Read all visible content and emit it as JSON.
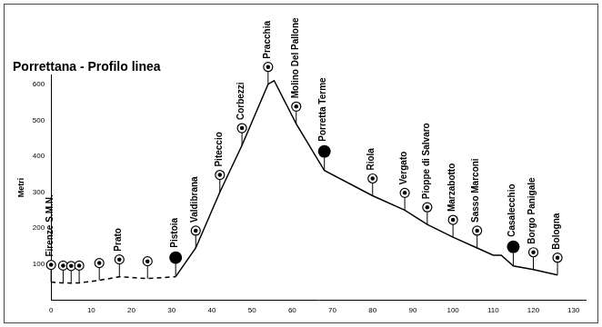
{
  "chart_data": {
    "type": "line",
    "title": "Porrettana - Profilo linea",
    "y_label": "Metri",
    "x": [
      0,
      3,
      5,
      7,
      12,
      17,
      24,
      31,
      36,
      42,
      47.5,
      54,
      55.5,
      61,
      68,
      80,
      88,
      93.6,
      100,
      106,
      110,
      112,
      115,
      120,
      126
    ],
    "series": [
      {
        "color": "#000000",
        "line_style": "dashed",
        "values": [
          50,
          48,
          47,
          48,
          55,
          65,
          60,
          65,
          null,
          null,
          null,
          null,
          null,
          null,
          null,
          null,
          null,
          null,
          null,
          null,
          null,
          null,
          null,
          null,
          null
        ]
      },
      {
        "color": "#000000",
        "line_style": "solid",
        "values": [
          null,
          null,
          null,
          null,
          null,
          null,
          null,
          65,
          145,
          300,
          430,
          600,
          610,
          490,
          360,
          290,
          250,
          210,
          175,
          145,
          125,
          125,
          95,
          85,
          70
        ]
      }
    ],
    "stations": [
      {
        "name": "Firenze S.M.N.",
        "km": 0,
        "elevation": 50,
        "marker": "ring"
      },
      {
        "name": null,
        "km": 3,
        "elevation": 48,
        "marker": "ring"
      },
      {
        "name": null,
        "km": 5,
        "elevation": 47,
        "marker": "ring"
      },
      {
        "name": null,
        "km": 7,
        "elevation": 48,
        "marker": "ring"
      },
      {
        "name": null,
        "km": 12,
        "elevation": 55,
        "marker": "ring"
      },
      {
        "name": "Prato",
        "km": 17,
        "elevation": 65,
        "marker": "ring"
      },
      {
        "name": null,
        "km": 24,
        "elevation": 60,
        "marker": "ring"
      },
      {
        "name": "Pistoia",
        "km": 31,
        "elevation": 65,
        "marker": "filled"
      },
      {
        "name": "Valdibrana",
        "km": 36,
        "elevation": 145,
        "marker": "ring"
      },
      {
        "name": "Piteccio",
        "km": 42,
        "elevation": 300,
        "marker": "ring"
      },
      {
        "name": "Corbezzi",
        "km": 47.5,
        "elevation": 430,
        "marker": "ring"
      },
      {
        "name": "Pracchia",
        "km": 54,
        "elevation": 600,
        "marker": "ring"
      },
      {
        "name": "Molino Del Pallone",
        "km": 61,
        "elevation": 490,
        "marker": "ring"
      },
      {
        "name": "Porretta Terme",
        "km": 68,
        "elevation": 360,
        "marker": "filled"
      },
      {
        "name": "Riola",
        "km": 80,
        "elevation": 290,
        "marker": "ring"
      },
      {
        "name": "Vergato",
        "km": 88,
        "elevation": 250,
        "marker": "ring"
      },
      {
        "name": "Pioppe di Salvaro",
        "km": 93.6,
        "elevation": 210,
        "marker": "ring"
      },
      {
        "name": "Marzabotto",
        "km": 100,
        "elevation": 175,
        "marker": "ring"
      },
      {
        "name": "Sasso Marconi",
        "km": 106,
        "elevation": 145,
        "marker": "ring"
      },
      {
        "name": "Casalecchio",
        "km": 115,
        "elevation": 95,
        "marker": "filled"
      },
      {
        "name": "Borgo Panigale",
        "km": 120,
        "elevation": 85,
        "marker": "ring"
      },
      {
        "name": "Bologna",
        "km": 126,
        "elevation": 70,
        "marker": "ring"
      }
    ],
    "xlim": [
      0,
      133
    ],
    "xticks": [
      0,
      10,
      20,
      30,
      40,
      50,
      60,
      70,
      80,
      90,
      100,
      110,
      120,
      130
    ],
    "ylim": [
      0,
      625
    ],
    "yticks": [
      100,
      200,
      300,
      400,
      500,
      600
    ],
    "grid": false
  }
}
